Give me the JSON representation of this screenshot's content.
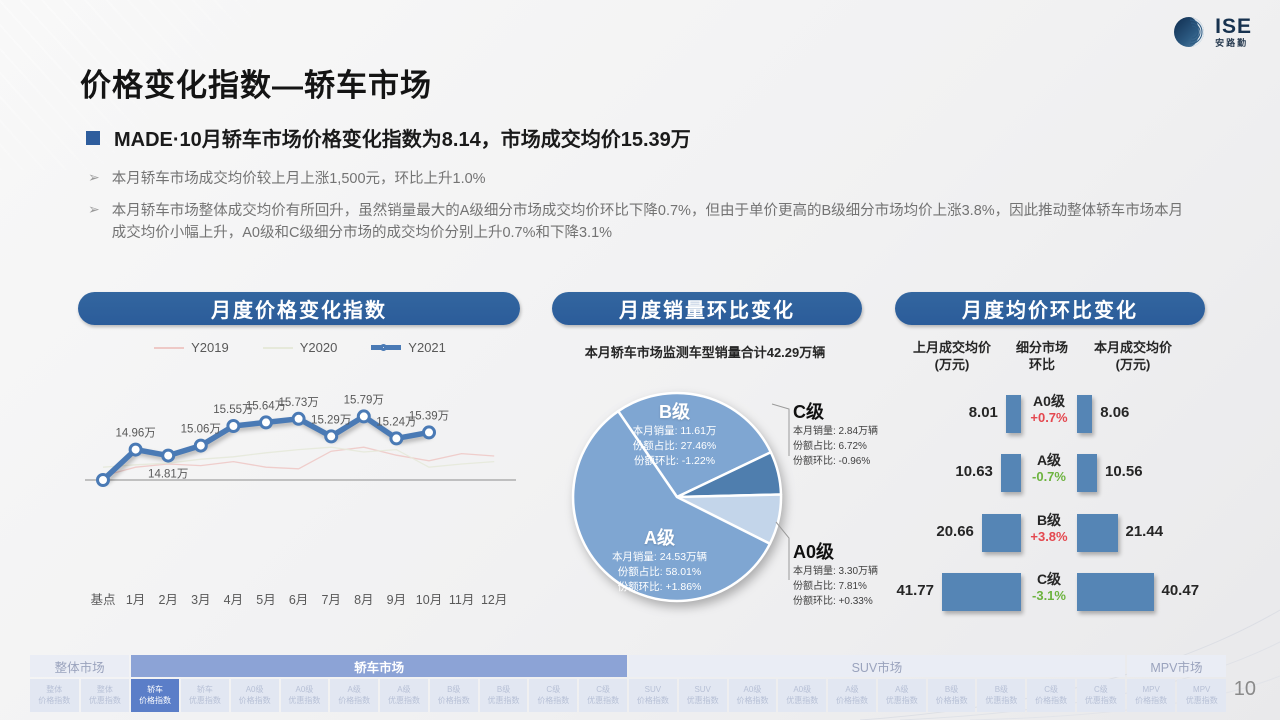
{
  "logo": {
    "name": "ISE",
    "sub": "安路勤"
  },
  "page": {
    "number": "10"
  },
  "header": {
    "title": "价格变化指数—轿车市场",
    "key_point": "MADE·10月轿车市场价格变化指数为8.14，市场成交均价15.39万",
    "bullets": [
      "本月轿车市场成交均价较上月上涨1,500元，环比上升1.0%",
      "本月轿车市场整体成交均价有所回升，虽然销量最大的A级细分市场成交均价环比下降0.7%，但由于单价更高的B级细分市场均价上涨3.8%，因此推动整体轿车市场本月成交均价小幅上升，A0级和C级细分市场的成交均价分别上升0.7%和下降3.1%"
    ]
  },
  "panels": {
    "line_title": "月度价格变化指数",
    "pie_title": "月度销量环比变化",
    "bar_title": "月度均价环比变化"
  },
  "chart_data": [
    {
      "type": "line",
      "title": "月度价格变化指数",
      "categories": [
        "基点",
        "1月",
        "2月",
        "3月",
        "4月",
        "5月",
        "6月",
        "7月",
        "8月",
        "9月",
        "10月",
        "11月",
        "12月"
      ],
      "ylim": [
        14.0,
        16.2
      ],
      "series": [
        {
          "name": "Y2019",
          "color": "#eec9c6",
          "estimated": true,
          "values": [
            14.3,
            14.52,
            14.6,
            14.56,
            14.66,
            14.52,
            14.48,
            14.92,
            15.02,
            14.82,
            14.68,
            14.86,
            14.8
          ]
        },
        {
          "name": "Y2020",
          "color": "#e6e9da",
          "estimated": true,
          "values": [
            14.52,
            14.58,
            14.62,
            14.72,
            14.78,
            14.88,
            14.96,
            15.02,
            14.9,
            14.96,
            14.52,
            14.6,
            14.66
          ]
        },
        {
          "name": "Y2021",
          "color": "#4a7ab5",
          "values": [
            14.2,
            14.96,
            14.81,
            15.06,
            15.55,
            15.64,
            15.73,
            15.29,
            15.79,
            15.24,
            15.39,
            null,
            null
          ],
          "labels": [
            "",
            "14.96万",
            "14.81万",
            "15.06万",
            "15.55万",
            "15.64万",
            "15.73万",
            "15.29万",
            "15.79万",
            "15.24万",
            "15.39万",
            "",
            ""
          ]
        }
      ]
    },
    {
      "type": "pie",
      "title": "月度销量环比变化",
      "subtitle": "本月轿车市场监测车型销量合计42.29万辆",
      "start_angle_deg": -34.4,
      "field_labels": {
        "sales": "本月销量:",
        "share": "份额占比:",
        "mom": "份额环比:"
      },
      "slices": [
        {
          "label": "B级",
          "value_pct": 27.46,
          "color": "#7fa6d2",
          "sales": "11.61万",
          "share": "27.46%",
          "mom": "-1.22%",
          "placement": "inside"
        },
        {
          "label": "C级",
          "value_pct": 6.72,
          "color": "#4f7eae",
          "sales": "2.84万辆",
          "share": "6.72%",
          "mom": "-0.96%",
          "placement": "callout"
        },
        {
          "label": "A0级",
          "value_pct": 7.81,
          "color": "#c3d5ea",
          "sales": "3.30万辆",
          "share": "7.81%",
          "mom": "+0.33%",
          "placement": "callout"
        },
        {
          "label": "A级",
          "value_pct": 58.01,
          "color": "#7fa6d2",
          "sales": "24.53万辆",
          "share": "58.01%",
          "mom": "+1.86%",
          "placement": "inside"
        }
      ]
    },
    {
      "type": "bar",
      "title": "月度均价环比变化",
      "col_headers": [
        "上月成交均价\n(万元)",
        "细分市场\n环比",
        "本月成交均价\n(万元)"
      ],
      "bar_color": "#5585b5",
      "up_color": "#e4484f",
      "down_color": "#6db33f",
      "rows": [
        {
          "segment": "A0级",
          "prev": 8.01,
          "mom": "+0.7%",
          "dir": "up",
          "curr": 8.06
        },
        {
          "segment": "A级",
          "prev": 10.63,
          "mom": "-0.7%",
          "dir": "down",
          "curr": 10.56
        },
        {
          "segment": "B级",
          "prev": 20.66,
          "mom": "+3.8%",
          "dir": "up",
          "curr": 21.44
        },
        {
          "segment": "C级",
          "prev": 41.77,
          "mom": "-3.1%",
          "dir": "down",
          "curr": 40.47
        }
      ]
    }
  ],
  "bottom_nav": {
    "sections": [
      {
        "label": "整体市场",
        "selected": false,
        "tabs": [
          {
            "l1": "整体",
            "l2": "价格指数"
          },
          {
            "l1": "整体",
            "l2": "优惠指数"
          }
        ]
      },
      {
        "label": "轿车市场",
        "selected": true,
        "tabs": [
          {
            "l1": "轿车",
            "l2": "价格指数",
            "selected": true
          },
          {
            "l1": "轿车",
            "l2": "优惠指数"
          },
          {
            "l1": "A0级",
            "l2": "价格指数"
          },
          {
            "l1": "A0级",
            "l2": "优惠指数"
          },
          {
            "l1": "A级",
            "l2": "价格指数"
          },
          {
            "l1": "A级",
            "l2": "优惠指数"
          },
          {
            "l1": "B级",
            "l2": "价格指数"
          },
          {
            "l1": "B级",
            "l2": "优惠指数"
          },
          {
            "l1": "C级",
            "l2": "价格指数"
          },
          {
            "l1": "C级",
            "l2": "优惠指数"
          }
        ]
      },
      {
        "label": "SUV市场",
        "selected": false,
        "tabs": [
          {
            "l1": "SUV",
            "l2": "价格指数"
          },
          {
            "l1": "SUV",
            "l2": "优惠指数"
          },
          {
            "l1": "A0级",
            "l2": "价格指数"
          },
          {
            "l1": "A0级",
            "l2": "优惠指数"
          },
          {
            "l1": "A级",
            "l2": "价格指数"
          },
          {
            "l1": "A级",
            "l2": "优惠指数"
          },
          {
            "l1": "B级",
            "l2": "价格指数"
          },
          {
            "l1": "B级",
            "l2": "优惠指数"
          },
          {
            "l1": "C级",
            "l2": "价格指数"
          },
          {
            "l1": "C级",
            "l2": "优惠指数"
          }
        ]
      },
      {
        "label": "MPV市场",
        "selected": false,
        "tabs": [
          {
            "l1": "MPV",
            "l2": "价格指数"
          },
          {
            "l1": "MPV",
            "l2": "优惠指数"
          }
        ]
      }
    ]
  }
}
